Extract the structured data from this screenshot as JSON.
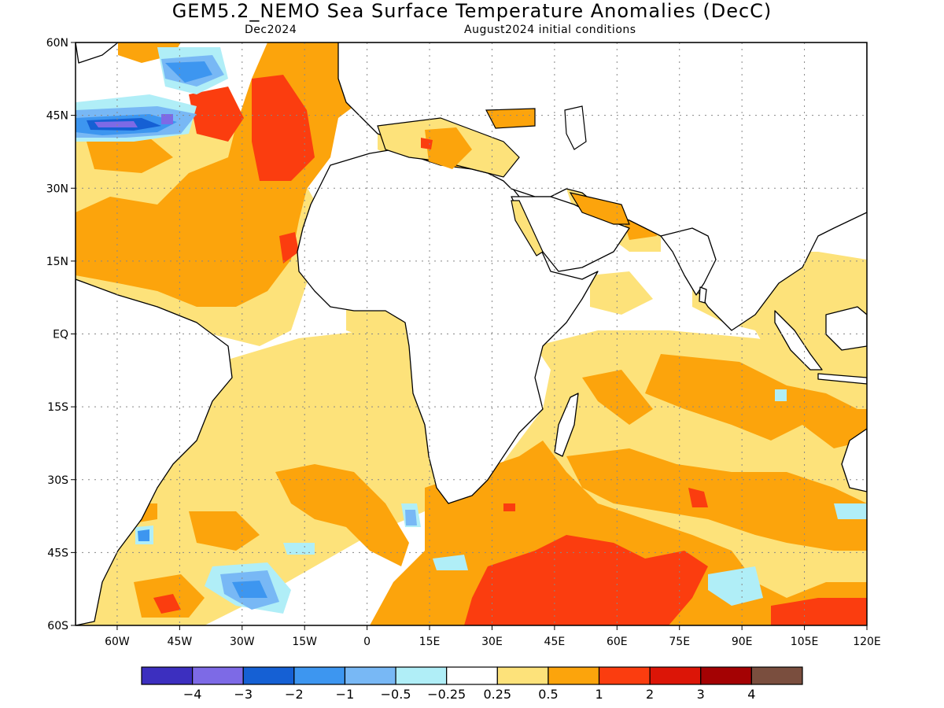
{
  "title": "GEM5.2_NEMO Sea Surface Temperature Anomalies (DecC)",
  "subtitle_left": "Dec2024",
  "subtitle_right": "August2024 initial conditions",
  "map": {
    "lon_range": [
      -70,
      120
    ],
    "lat_range": [
      -60,
      60
    ],
    "lat_ticks": [
      "60N",
      "45N",
      "30N",
      "15N",
      "EQ",
      "15S",
      "30S",
      "45S",
      "60S"
    ],
    "lon_ticks": [
      "60W",
      "45W",
      "30W",
      "15W",
      "0",
      "15E",
      "30E",
      "45E",
      "60E",
      "75E",
      "90E",
      "105E",
      "120E"
    ],
    "gridlines": "dotted"
  },
  "legend": {
    "colors": [
      "#3c2fbf",
      "#7d6ae6",
      "#1560d4",
      "#3d96f0",
      "#78b8f5",
      "#b0eef7",
      "#ffffff",
      "#fde27a",
      "#fca40c",
      "#fb3d0f",
      "#dc1507",
      "#a40203",
      "#7a4e3e"
    ],
    "labels": [
      "-4",
      "-3",
      "-2",
      "-1",
      "-0.5",
      "-0.25",
      "0.25",
      "0.5",
      "1",
      "2",
      "3",
      "4"
    ]
  }
}
